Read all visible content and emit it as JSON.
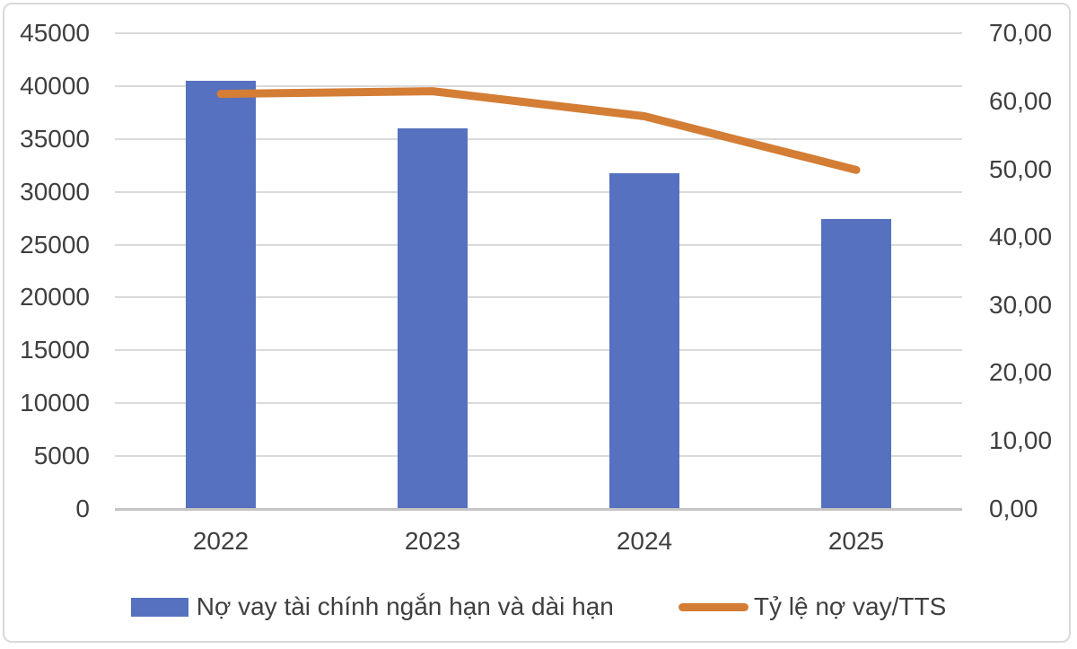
{
  "chart_data": {
    "type": "bar",
    "subtype": "combo-bar-line-dual-axis",
    "title": "",
    "categories": [
      "2022",
      "2023",
      "2024",
      "2025"
    ],
    "series": [
      {
        "name": "Nợ vay tài chính ngắn hạn và dài hạn",
        "type": "bar",
        "axis": "left",
        "color": "#5571BF",
        "values": [
          40500,
          36000,
          31800,
          27400
        ]
      },
      {
        "name": "Tỷ lệ nợ vay/TTS",
        "type": "line",
        "axis": "right",
        "color": "#D47D35",
        "values": [
          61.1,
          61.5,
          57.8,
          49.9
        ]
      }
    ],
    "left_axis": {
      "min": 0,
      "max": 45000,
      "step": 5000,
      "tick_labels": [
        "0",
        "5000",
        "10000",
        "15000",
        "20000",
        "25000",
        "30000",
        "35000",
        "40000",
        "45000"
      ]
    },
    "right_axis": {
      "min": 0,
      "max": 70,
      "step": 10,
      "tick_labels": [
        "0,00",
        "10,00",
        "20,00",
        "30,00",
        "40,00",
        "50,00",
        "60,00",
        "70,00"
      ]
    },
    "grid": true,
    "legend_position": "bottom",
    "colors": {
      "background": "#FFFFFF",
      "frame_border": "#D9D9D9",
      "gridline": "#DADADA",
      "axis_line": "#C6C4C4",
      "text": "#3F3F3F"
    }
  }
}
